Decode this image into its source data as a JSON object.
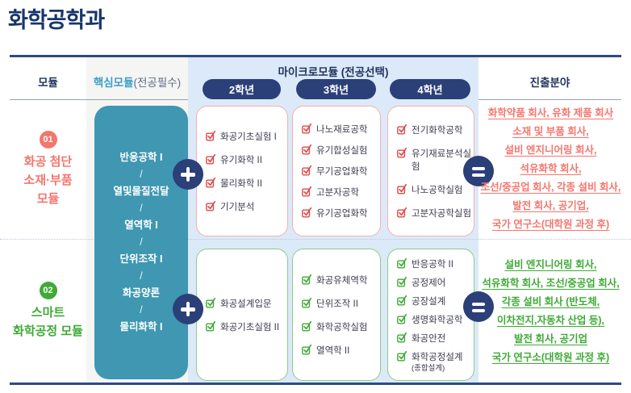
{
  "title": "화학공학과",
  "header": {
    "module": "모듈",
    "core_title": "핵심모듈",
    "core_suffix": "(전공필수)",
    "micro_title": "마이크로모듈 (전공선택)",
    "years": [
      "2학년",
      "3학년",
      "4학년"
    ],
    "career": "진출분야"
  },
  "core_module": {
    "separator": "/",
    "courses": [
      "반응공학 I",
      "열및물질전달",
      "열역학 I",
      "단위조작 I",
      "화공양론",
      "물리화학 I"
    ]
  },
  "colors": {
    "navy": "#2b3f78",
    "teal": "#3f97b1",
    "light_blue": "#dce9f8",
    "light_gray": "#f5f5f3",
    "pink_accent": "#f4766e",
    "pink_border": "#f6b0ae",
    "red_check": "#dd4b4b",
    "green_accent": "#3faa36",
    "green_border": "#8bcd87"
  },
  "rows": [
    {
      "badge": "01",
      "label_lines": [
        "화공 첨단",
        "소재·부품",
        "모듈"
      ],
      "year_courses": [
        [
          "화공기초실험 I",
          "유기화학 II",
          "물리화학 II",
          "기기분석"
        ],
        [
          "나노재료공학",
          "유기합성실험",
          "무기공업화학",
          "고분자공학",
          "유기공업화학"
        ],
        [
          "전기화학공학",
          "유기재료분석실험",
          "나노공학실험",
          "고분자공학실험"
        ]
      ],
      "career_lines": [
        "화학약품 회사, 유화 제품 회사",
        "소재 및 부품 회사,",
        "설비 엔지니어링 회사,",
        "석유화학 회사,",
        "조선/중공업 회사, 각종 설비 회사,",
        "발전 회사, 공기업,",
        "국가 연구소(대학원 과정 후)"
      ]
    },
    {
      "badge": "02",
      "label_lines": [
        "스마트",
        "화학공정 모듈"
      ],
      "year_courses": [
        [
          "화공설계입문",
          "화공기초실험 II"
        ],
        [
          "화공유체역학",
          "단위조작 II",
          "화학공학실험",
          "열역학 II"
        ],
        [
          "반응공학 II",
          "공정제어",
          "공장설계",
          "생명화학공학",
          "화공안전",
          {
            "t": "화학공정설계",
            "sub": "(종합설계)"
          }
        ]
      ],
      "career_lines": [
        "설비 엔지니어링 회사,",
        "석유화학 회사, 조선/중공업 회사,",
        "각종 설비 회사 (반도체,",
        "이차전지,자동차 산업 등),",
        "발전 회사, 공기업",
        "국가 연구소(대학원 과정 후)"
      ]
    }
  ]
}
